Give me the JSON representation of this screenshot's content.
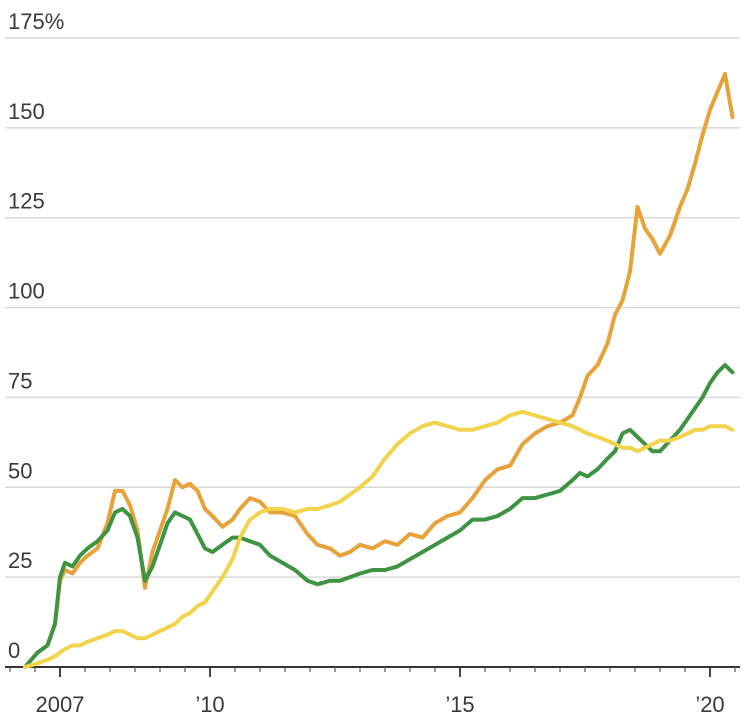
{
  "chart_data": {
    "type": "line",
    "y_ticks": [
      {
        "value": 0,
        "label": "0"
      },
      {
        "value": 25,
        "label": "25"
      },
      {
        "value": 50,
        "label": "50"
      },
      {
        "value": 75,
        "label": "75"
      },
      {
        "value": 100,
        "label": "100"
      },
      {
        "value": 125,
        "label": "125"
      },
      {
        "value": 150,
        "label": "150"
      },
      {
        "value": 175,
        "label": "175%"
      }
    ],
    "x_ticks": [
      {
        "value": 2007,
        "label": "2007"
      },
      {
        "value": 2010,
        "label": "’10"
      },
      {
        "value": 2015,
        "label": "’15"
      },
      {
        "value": 2020,
        "label": "’20"
      }
    ],
    "ylim": [
      0,
      175
    ],
    "xlim": [
      2005.9,
      2020.6
    ],
    "grid": true,
    "series": [
      {
        "color": "#e8a23a",
        "x": [
          2006.3,
          2006.55,
          2006.75,
          2006.9,
          2007.0,
          2007.1,
          2007.25,
          2007.4,
          2007.55,
          2007.75,
          2007.95,
          2008.1,
          2008.25,
          2008.4,
          2008.55,
          2008.7,
          2008.85,
          2009.0,
          2009.15,
          2009.3,
          2009.45,
          2009.6,
          2009.75,
          2009.9,
          2010.05,
          2010.25,
          2010.45,
          2010.6,
          2010.8,
          2011.0,
          2011.2,
          2011.45,
          2011.7,
          2011.95,
          2012.15,
          2012.4,
          2012.6,
          2012.8,
          2013.0,
          2013.25,
          2013.5,
          2013.75,
          2014.0,
          2014.25,
          2014.5,
          2014.75,
          2015.0,
          2015.25,
          2015.5,
          2015.75,
          2016.0,
          2016.25,
          2016.5,
          2016.75,
          2017.0,
          2017.25,
          2017.4,
          2017.55,
          2017.75,
          2017.95,
          2018.1,
          2018.25,
          2018.4,
          2018.55,
          2018.7,
          2018.85,
          2019.0,
          2019.2,
          2019.4,
          2019.55,
          2019.7,
          2019.85,
          2020.0,
          2020.15,
          2020.3,
          2020.45
        ],
        "values": [
          0,
          4,
          6,
          12,
          24,
          27,
          26,
          29,
          31,
          33,
          40,
          49,
          49,
          45,
          38,
          22,
          32,
          38,
          44,
          52,
          50,
          51,
          49,
          44,
          42,
          39,
          41,
          44,
          47,
          46,
          43,
          43,
          42,
          37,
          34,
          33,
          31,
          32,
          34,
          33,
          35,
          34,
          37,
          36,
          40,
          42,
          43,
          47,
          52,
          55,
          56,
          62,
          65,
          67,
          68,
          70,
          75,
          81,
          84,
          90,
          98,
          102,
          110,
          128,
          122,
          119,
          115,
          120,
          128,
          133,
          140,
          148,
          155,
          160,
          165,
          153
        ]
      },
      {
        "color": "#3e9442",
        "x": [
          2006.3,
          2006.55,
          2006.75,
          2006.9,
          2007.0,
          2007.1,
          2007.25,
          2007.4,
          2007.55,
          2007.75,
          2007.95,
          2008.1,
          2008.25,
          2008.4,
          2008.55,
          2008.7,
          2008.85,
          2009.0,
          2009.15,
          2009.3,
          2009.45,
          2009.6,
          2009.75,
          2009.9,
          2010.05,
          2010.25,
          2010.45,
          2010.6,
          2010.8,
          2011.0,
          2011.2,
          2011.45,
          2011.7,
          2011.95,
          2012.15,
          2012.4,
          2012.6,
          2012.8,
          2013.0,
          2013.25,
          2013.5,
          2013.75,
          2014.0,
          2014.25,
          2014.5,
          2014.75,
          2015.0,
          2015.25,
          2015.5,
          2015.75,
          2016.0,
          2016.25,
          2016.5,
          2016.75,
          2017.0,
          2017.25,
          2017.4,
          2017.55,
          2017.75,
          2017.95,
          2018.1,
          2018.25,
          2018.4,
          2018.55,
          2018.7,
          2018.85,
          2019.0,
          2019.2,
          2019.4,
          2019.55,
          2019.7,
          2019.85,
          2020.0,
          2020.15,
          2020.3,
          2020.45
        ],
        "values": [
          0,
          4,
          6,
          12,
          25,
          29,
          28,
          31,
          33,
          35,
          38,
          43,
          44,
          42,
          36,
          24,
          28,
          34,
          40,
          43,
          42,
          41,
          37,
          33,
          32,
          34,
          36,
          36,
          35,
          34,
          31,
          29,
          27,
          24,
          23,
          24,
          24,
          25,
          26,
          27,
          27,
          28,
          30,
          32,
          34,
          36,
          38,
          41,
          41,
          42,
          44,
          47,
          47,
          48,
          49,
          52,
          54,
          53,
          55,
          58,
          60,
          65,
          66,
          64,
          62,
          60,
          60,
          63,
          66,
          69,
          72,
          75,
          79,
          82,
          84,
          82
        ]
      },
      {
        "color": "#f2d34c",
        "x": [
          2006.3,
          2006.55,
          2006.75,
          2006.9,
          2007.0,
          2007.1,
          2007.25,
          2007.4,
          2007.55,
          2007.75,
          2007.95,
          2008.1,
          2008.25,
          2008.4,
          2008.55,
          2008.7,
          2008.85,
          2009.0,
          2009.15,
          2009.3,
          2009.45,
          2009.6,
          2009.75,
          2009.9,
          2010.05,
          2010.25,
          2010.45,
          2010.6,
          2010.8,
          2011.0,
          2011.2,
          2011.45,
          2011.7,
          2011.95,
          2012.15,
          2012.4,
          2012.6,
          2012.8,
          2013.0,
          2013.25,
          2013.5,
          2013.75,
          2014.0,
          2014.25,
          2014.5,
          2014.75,
          2015.0,
          2015.25,
          2015.5,
          2015.75,
          2016.0,
          2016.25,
          2016.5,
          2016.75,
          2017.0,
          2017.25,
          2017.4,
          2017.55,
          2017.75,
          2017.95,
          2018.1,
          2018.25,
          2018.4,
          2018.55,
          2018.7,
          2018.85,
          2019.0,
          2019.2,
          2019.4,
          2019.55,
          2019.7,
          2019.85,
          2020.0,
          2020.15,
          2020.3,
          2020.45
        ],
        "values": [
          0,
          1,
          2,
          3,
          4,
          5,
          6,
          6,
          7,
          8,
          9,
          10,
          10,
          9,
          8,
          8,
          9,
          10,
          11,
          12,
          14,
          15,
          17,
          18,
          21,
          25,
          30,
          36,
          41,
          43,
          44,
          44,
          43,
          44,
          44,
          45,
          46,
          48,
          50,
          53,
          58,
          62,
          65,
          67,
          68,
          67,
          66,
          66,
          67,
          68,
          70,
          71,
          70,
          69,
          68,
          67,
          66,
          65,
          64,
          63,
          62,
          61,
          61,
          60,
          61,
          62,
          63,
          63,
          64,
          65,
          66,
          66,
          67,
          67,
          67,
          66
        ]
      }
    ]
  }
}
